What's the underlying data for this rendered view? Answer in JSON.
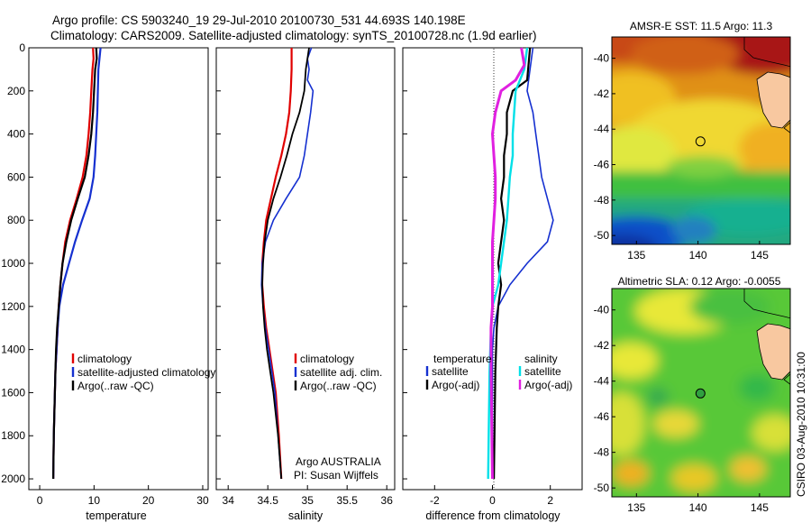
{
  "header": {
    "line1": "Argo profile: CS 5903240_19 29-Jul-2010 20100730_531 44.693S 140.198E",
    "line2": "Climatology: CARS2009. Satellite-adjusted climatology: synTS_20100728.nc (1.9d earlier)"
  },
  "footer": {
    "agency": "Argo AUSTRALIA",
    "pi": "PI: Susan Wijffels",
    "credit": "CSIRO 03-Aug-2010 10:31:00"
  },
  "colors": {
    "climatology": "#e00000",
    "satellite": "#1530d0",
    "argo": "#000000",
    "satellite_salinity": "#00e0e8",
    "argo_adj_salinity": "#e020e0"
  },
  "chart_data": [
    {
      "type": "line",
      "xlabel": "temperature",
      "ylabel": "",
      "xlim": [
        -2,
        31
      ],
      "ylim": [
        2050,
        0
      ],
      "xticks": [
        "0",
        "10",
        "20",
        "30"
      ],
      "yticks": [
        "0",
        "200",
        "400",
        "600",
        "800",
        "1000",
        "1200",
        "1400",
        "1600",
        "1800",
        "2000"
      ],
      "legend": {
        "position": "lower-right",
        "entries": [
          "climatology",
          "satellite-adjusted climatology",
          "Argo(..raw -QC)"
        ]
      },
      "series": [
        {
          "name": "climatology",
          "color": "#e00000",
          "points": [
            [
              9.8,
              0
            ],
            [
              9.9,
              50
            ],
            [
              9.7,
              100
            ],
            [
              9.5,
              200
            ],
            [
              9.3,
              300
            ],
            [
              9.0,
              400
            ],
            [
              8.6,
              500
            ],
            [
              7.9,
              600
            ],
            [
              6.8,
              700
            ],
            [
              5.6,
              800
            ],
            [
              4.7,
              900
            ],
            [
              4.2,
              1000
            ],
            [
              3.8,
              1100
            ],
            [
              3.5,
              1200
            ],
            [
              3.3,
              1300
            ],
            [
              3.1,
              1400
            ],
            [
              2.9,
              1500
            ],
            [
              2.8,
              1600
            ],
            [
              2.6,
              1800
            ],
            [
              2.5,
              2000
            ]
          ]
        },
        {
          "name": "satellite-adjusted climatology",
          "color": "#1530d0",
          "points": [
            [
              11.2,
              0
            ],
            [
              11.0,
              50
            ],
            [
              10.8,
              100
            ],
            [
              10.7,
              200
            ],
            [
              10.6,
              300
            ],
            [
              10.4,
              400
            ],
            [
              10.2,
              500
            ],
            [
              9.9,
              600
            ],
            [
              9.2,
              700
            ],
            [
              7.8,
              800
            ],
            [
              6.5,
              900
            ],
            [
              5.4,
              1000
            ],
            [
              4.3,
              1100
            ],
            [
              3.6,
              1200
            ],
            [
              3.3,
              1300
            ],
            [
              3.1,
              1400
            ],
            [
              2.9,
              1500
            ],
            [
              2.8,
              1600
            ],
            [
              2.6,
              1800
            ],
            [
              2.5,
              2000
            ]
          ]
        },
        {
          "name": "Argo(..raw -QC)",
          "color": "#000000",
          "points": [
            [
              10.4,
              0
            ],
            [
              10.5,
              50
            ],
            [
              10.2,
              100
            ],
            [
              10.0,
              200
            ],
            [
              9.8,
              300
            ],
            [
              9.5,
              400
            ],
            [
              9.0,
              500
            ],
            [
              8.3,
              600
            ],
            [
              7.0,
              700
            ],
            [
              5.8,
              800
            ],
            [
              4.9,
              900
            ],
            [
              4.2,
              1000
            ],
            [
              3.8,
              1100
            ],
            [
              3.5,
              1200
            ],
            [
              3.2,
              1300
            ],
            [
              3.0,
              1400
            ],
            [
              2.9,
              1500
            ],
            [
              2.8,
              1600
            ],
            [
              2.6,
              1800
            ],
            [
              2.5,
              2000
            ]
          ]
        }
      ]
    },
    {
      "type": "line",
      "xlabel": "salinity",
      "ylabel": "",
      "xlim": [
        33.85,
        36.1
      ],
      "ylim": [
        2050,
        0
      ],
      "xticks": [
        "34",
        "34.5",
        "35",
        "35.5",
        "36"
      ],
      "legend": {
        "position": "lower-right",
        "entries": [
          "climatology",
          "satellite adj. clim.",
          "Argo(..raw -QC)"
        ]
      },
      "series": [
        {
          "name": "climatology",
          "color": "#e00000",
          "points": [
            [
              34.8,
              0
            ],
            [
              34.8,
              50
            ],
            [
              34.8,
              100
            ],
            [
              34.79,
              200
            ],
            [
              34.77,
              300
            ],
            [
              34.73,
              400
            ],
            [
              34.67,
              500
            ],
            [
              34.6,
              600
            ],
            [
              34.54,
              700
            ],
            [
              34.48,
              800
            ],
            [
              34.45,
              900
            ],
            [
              34.43,
              1000
            ],
            [
              34.43,
              1100
            ],
            [
              34.45,
              1200
            ],
            [
              34.48,
              1300
            ],
            [
              34.52,
              1400
            ],
            [
              34.56,
              1500
            ],
            [
              34.6,
              1600
            ],
            [
              34.64,
              1800
            ],
            [
              34.67,
              2000
            ]
          ]
        },
        {
          "name": "satellite adj. clim.",
          "color": "#1530d0",
          "points": [
            [
              35.05,
              0
            ],
            [
              35.0,
              50
            ],
            [
              35.02,
              100
            ],
            [
              35.0,
              150
            ],
            [
              35.07,
              200
            ],
            [
              35.04,
              300
            ],
            [
              35.0,
              400
            ],
            [
              34.96,
              500
            ],
            [
              34.9,
              600
            ],
            [
              34.73,
              700
            ],
            [
              34.57,
              800
            ],
            [
              34.47,
              900
            ],
            [
              34.43,
              1000
            ],
            [
              34.42,
              1100
            ],
            [
              34.44,
              1200
            ],
            [
              34.47,
              1300
            ],
            [
              34.51,
              1400
            ],
            [
              34.55,
              1500
            ],
            [
              34.59,
              1600
            ],
            [
              34.63,
              1800
            ],
            [
              34.67,
              2000
            ]
          ]
        },
        {
          "name": "Argo(..raw -QC)",
          "color": "#000000",
          "points": [
            [
              35.02,
              0
            ],
            [
              35.0,
              50
            ],
            [
              34.98,
              100
            ],
            [
              34.96,
              200
            ],
            [
              34.9,
              300
            ],
            [
              34.81,
              400
            ],
            [
              34.74,
              500
            ],
            [
              34.66,
              600
            ],
            [
              34.57,
              700
            ],
            [
              34.5,
              800
            ],
            [
              34.46,
              900
            ],
            [
              34.44,
              1000
            ],
            [
              34.43,
              1100
            ],
            [
              34.44,
              1200
            ],
            [
              34.46,
              1300
            ],
            [
              34.49,
              1400
            ],
            [
              34.53,
              1500
            ],
            [
              34.57,
              1600
            ],
            [
              34.63,
              1800
            ],
            [
              34.67,
              2000
            ]
          ]
        }
      ]
    },
    {
      "type": "line",
      "xlabel": "difference from climatology",
      "ylabel": "",
      "xlim": [
        -3.1,
        3.1
      ],
      "ylim": [
        2050,
        0
      ],
      "xticks": [
        "-2",
        "0",
        "2"
      ],
      "legend": {
        "position": "lower-center",
        "temperature_heading": "temperature",
        "salinity_heading": "salinity",
        "entries": [
          "satellite",
          "Argo(-adj)",
          "satellite",
          "Argo(-adj)"
        ]
      },
      "series": [
        {
          "name": "satellite",
          "group": "temperature",
          "color": "#1530d0",
          "points": [
            [
              1.4,
              0
            ],
            [
              1.3,
              100
            ],
            [
              1.2,
              200
            ],
            [
              1.4,
              300
            ],
            [
              1.5,
              400
            ],
            [
              1.6,
              500
            ],
            [
              1.7,
              600
            ],
            [
              1.9,
              700
            ],
            [
              2.1,
              800
            ],
            [
              1.9,
              900
            ],
            [
              1.2,
              1000
            ],
            [
              0.6,
              1100
            ],
            [
              0.2,
              1200
            ],
            [
              0.05,
              1300
            ],
            [
              0.0,
              1400
            ],
            [
              0.0,
              2000
            ]
          ]
        },
        {
          "name": "Argo(-adj)",
          "group": "temperature",
          "color": "#000000",
          "points": [
            [
              1.3,
              0
            ],
            [
              1.2,
              150
            ],
            [
              0.7,
              200
            ],
            [
              0.5,
              300
            ],
            [
              0.5,
              400
            ],
            [
              0.4,
              500
            ],
            [
              0.4,
              600
            ],
            [
              0.3,
              700
            ],
            [
              0.4,
              800
            ],
            [
              0.3,
              900
            ],
            [
              0.2,
              1000
            ],
            [
              0.3,
              1100
            ],
            [
              0.2,
              1200
            ],
            [
              0.15,
              1300
            ],
            [
              0.1,
              1500
            ],
            [
              0.05,
              2000
            ]
          ]
        },
        {
          "name": "satellite",
          "group": "salinity",
          "color": "#00e0e8",
          "points": [
            [
              1.2,
              0
            ],
            [
              1.1,
              100
            ],
            [
              0.8,
              200
            ],
            [
              0.75,
              300
            ],
            [
              0.7,
              400
            ],
            [
              0.7,
              500
            ],
            [
              0.6,
              600
            ],
            [
              0.55,
              700
            ],
            [
              0.5,
              800
            ],
            [
              0.4,
              900
            ],
            [
              0.3,
              1000
            ],
            [
              0.2,
              1100
            ],
            [
              0.0,
              1200
            ],
            [
              -0.05,
              1300
            ],
            [
              -0.1,
              1500
            ],
            [
              -0.15,
              2000
            ]
          ]
        },
        {
          "name": "Argo(-adj)",
          "group": "salinity",
          "color": "#e020e0",
          "points": [
            [
              1.0,
              0
            ],
            [
              1.1,
              80
            ],
            [
              0.8,
              150
            ],
            [
              0.3,
              200
            ],
            [
              0.1,
              300
            ],
            [
              0.0,
              400
            ],
            [
              0.05,
              500
            ],
            [
              0.1,
              600
            ],
            [
              0.1,
              700
            ],
            [
              0.05,
              800
            ],
            [
              0.0,
              900
            ],
            [
              0.0,
              1000
            ],
            [
              0.0,
              1100
            ],
            [
              0.0,
              1200
            ],
            [
              -0.05,
              1300
            ],
            [
              -0.05,
              1500
            ],
            [
              0.0,
              2000
            ]
          ]
        }
      ]
    },
    {
      "type": "heatmap",
      "title": "AMSR-E SST: 11.5 Argo: 11.3",
      "xlim": [
        133,
        147.5
      ],
      "ylim": [
        -50.5,
        -38.8
      ],
      "xticks": [
        "135",
        "140",
        "145"
      ],
      "yticks": [
        "-40",
        "-42",
        "-44",
        "-46",
        "-48",
        "-50"
      ],
      "marker": {
        "lon": 140.198,
        "lat": -44.693
      }
    },
    {
      "type": "heatmap",
      "title": "Altimetric SLA: 0.12 Argo: -0.0055",
      "xlim": [
        133,
        147.5
      ],
      "ylim": [
        -50.5,
        -38.8
      ],
      "xticks": [
        "135",
        "140",
        "145"
      ],
      "yticks": [
        "-40",
        "-42",
        "-44",
        "-46",
        "-48",
        "-50"
      ],
      "marker": {
        "lon": 140.198,
        "lat": -44.693
      }
    }
  ]
}
